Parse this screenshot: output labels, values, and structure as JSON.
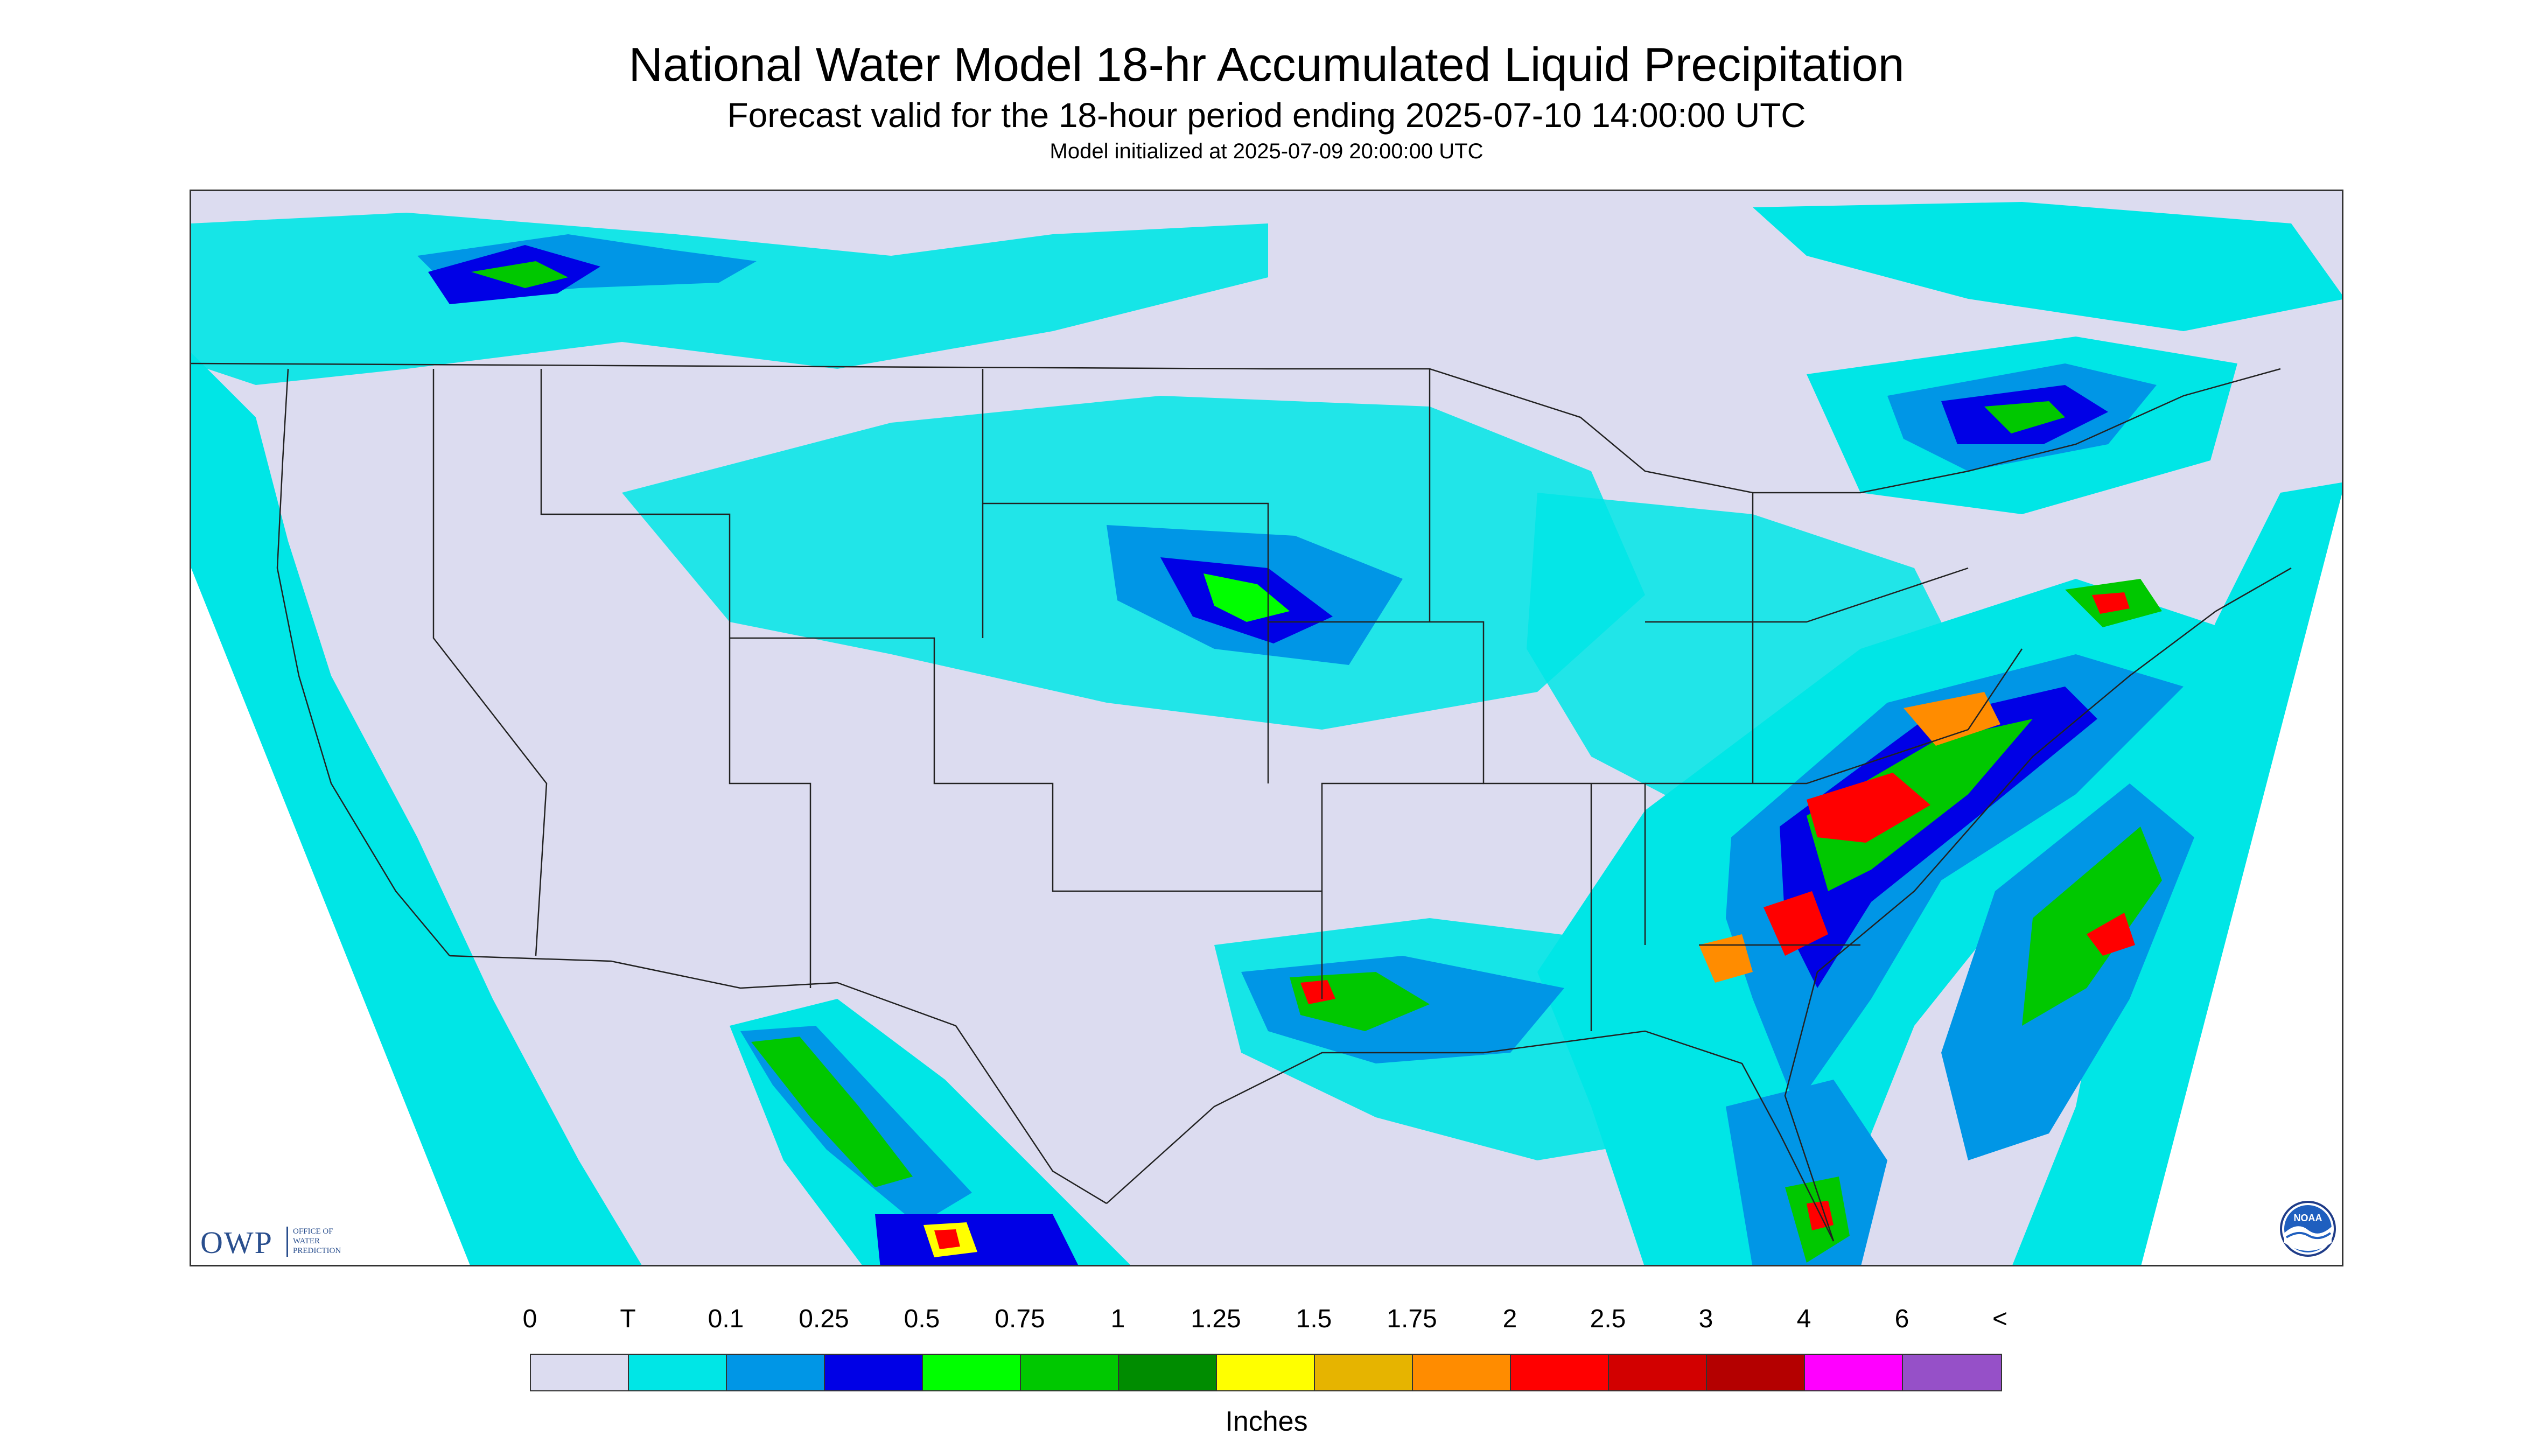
{
  "header": {
    "title": "National Water Model 18-hr Accumulated Liquid Precipitation",
    "subtitle": "Forecast valid for the 18-hour period ending 2025-07-10 14:00:00 UTC",
    "init": "Model initialized at 2025-07-09 20:00:00 UTC"
  },
  "legend": {
    "labels": [
      "0",
      "T",
      "0.1",
      "0.25",
      "0.5",
      "0.75",
      "1",
      "1.25",
      "1.5",
      "1.75",
      "2",
      "2.5",
      "3",
      "4",
      "6",
      "<"
    ],
    "colors": [
      "#dcdcf0",
      "#00e6e6",
      "#0096e6",
      "#0000e6",
      "#00ff00",
      "#00c800",
      "#008c00",
      "#ffff00",
      "#e6b400",
      "#ff8c00",
      "#ff0000",
      "#d20000",
      "#b40000",
      "#ff00ff",
      "#9650c8"
    ],
    "units": "Inches"
  },
  "logos": {
    "owp_letters": "OWP",
    "owp_text": [
      "OFFICE OF",
      "WATER",
      "PREDICTION"
    ],
    "noaa_text": "NOAA"
  },
  "map": {
    "background_color": "#dcdcf0",
    "outside_domain_color": "#ffffff",
    "ocean_color": "#00e6e6",
    "border_color": "#222222"
  }
}
